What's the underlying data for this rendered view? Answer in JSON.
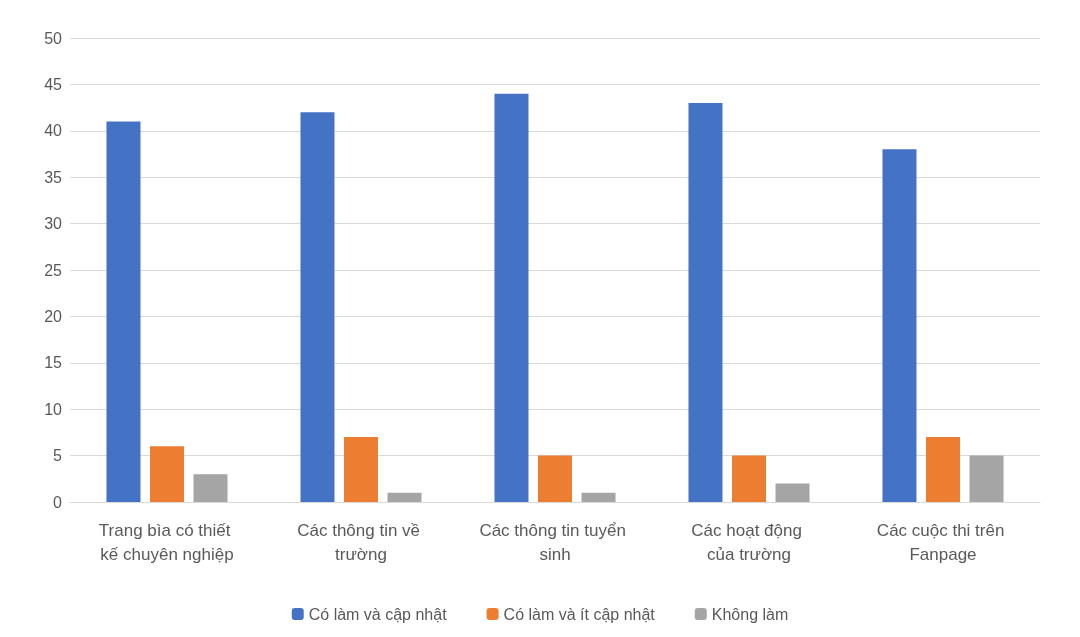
{
  "chart_data": {
    "type": "bar",
    "categories": [
      "Trang bìa có thiết kế chuyên nghiệp",
      "Các thông tin về trường",
      "Các thông tin tuyển sinh",
      "Các hoạt động của trường",
      "Các cuộc thi trên Fanpage"
    ],
    "series": [
      {
        "name": "Có làm và cập nhật",
        "color": "#4472c4",
        "values": [
          41,
          42,
          44,
          43,
          38
        ]
      },
      {
        "name": "Có làm và ít cập nhật",
        "color": "#ed7d31",
        "values": [
          6,
          7,
          5,
          5,
          7
        ]
      },
      {
        "name": "Không làm",
        "color": "#a5a5a5",
        "values": [
          3,
          1,
          1,
          2,
          5
        ]
      }
    ],
    "ylim": [
      0,
      50
    ],
    "yticks": [
      0,
      5,
      10,
      15,
      20,
      25,
      30,
      35,
      40,
      45,
      50
    ],
    "grid": "y",
    "legend": "bottom"
  }
}
